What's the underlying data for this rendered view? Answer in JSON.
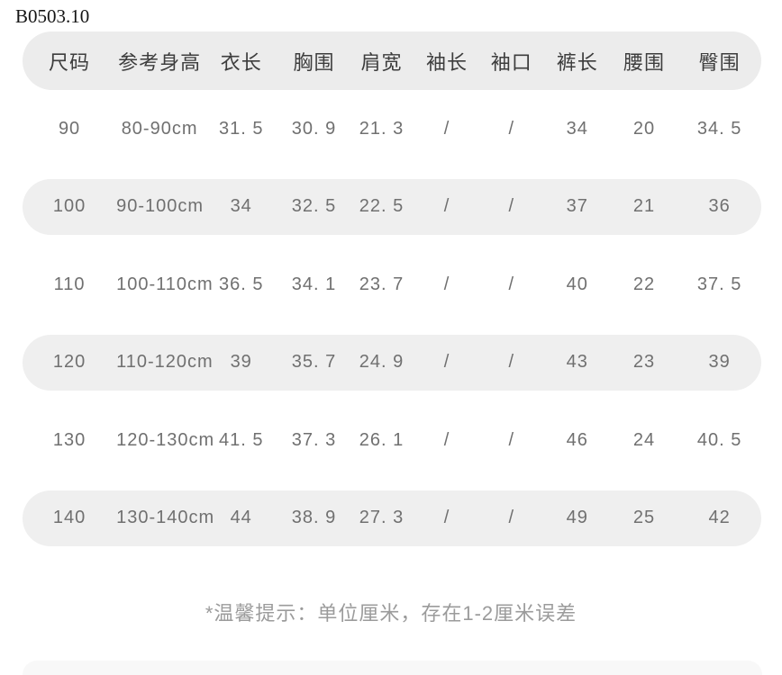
{
  "page": {
    "product_code": "B0503.10",
    "note": "*温馨提示：单位厘米，存在1-2厘米误差"
  },
  "table": {
    "headers": [
      "尺码",
      "参考身高",
      "衣长",
      "胸围",
      "肩宽",
      "袖长",
      "袖口",
      "裤长",
      "腰围",
      "臀围"
    ],
    "rows": [
      [
        "90",
        "80-90cm",
        "31. 5",
        "30. 9",
        "21. 3",
        "/",
        "/",
        "34",
        "20",
        "34. 5"
      ],
      [
        "100",
        "90-100cm",
        "34",
        "32. 5",
        "22. 5",
        "/",
        "/",
        "37",
        "21",
        "36"
      ],
      [
        "110",
        "100-110cm",
        "36. 5",
        "34. 1",
        "23. 7",
        "/",
        "/",
        "40",
        "22",
        "37. 5"
      ],
      [
        "120",
        "110-120cm",
        "39",
        "35. 7",
        "24. 9",
        "/",
        "/",
        "43",
        "23",
        "39"
      ],
      [
        "130",
        "120-130cm",
        "41. 5",
        "37. 3",
        "26. 1",
        "/",
        "/",
        "46",
        "24",
        "40. 5"
      ],
      [
        "140",
        "130-140cm",
        "44",
        "38. 9",
        "27. 3",
        "/",
        "/",
        "49",
        "25",
        "42"
      ]
    ]
  },
  "chart_data": {
    "type": "table",
    "title": "B0503.10",
    "columns": [
      "尺码",
      "参考身高",
      "衣长",
      "胸围",
      "肩宽",
      "袖长",
      "袖口",
      "裤长",
      "腰围",
      "臀围"
    ],
    "rows": [
      [
        "90",
        "80-90cm",
        31.5,
        30.9,
        21.3,
        null,
        null,
        34,
        20,
        34.5
      ],
      [
        "100",
        "90-100cm",
        34,
        32.5,
        22.5,
        null,
        null,
        37,
        21,
        36
      ],
      [
        "110",
        "100-110cm",
        36.5,
        34.1,
        23.7,
        null,
        null,
        40,
        22,
        37.5
      ],
      [
        "120",
        "110-120cm",
        39,
        35.7,
        24.9,
        null,
        null,
        43,
        23,
        39
      ],
      [
        "130",
        "120-130cm",
        41.5,
        37.3,
        26.1,
        null,
        null,
        46,
        24,
        40.5
      ],
      [
        "140",
        "130-140cm",
        44,
        38.9,
        27.3,
        null,
        null,
        49,
        25,
        42
      ]
    ]
  },
  "colors": {
    "page_background": "#ffffff",
    "header_band": "#ececec",
    "stripe_band": "#efefef",
    "header_text": "#3d3d3d",
    "data_text": "#707070",
    "note_text": "#9b9b9b",
    "product_code_text": "#151515",
    "bottom_band": "#f8f8f8"
  }
}
